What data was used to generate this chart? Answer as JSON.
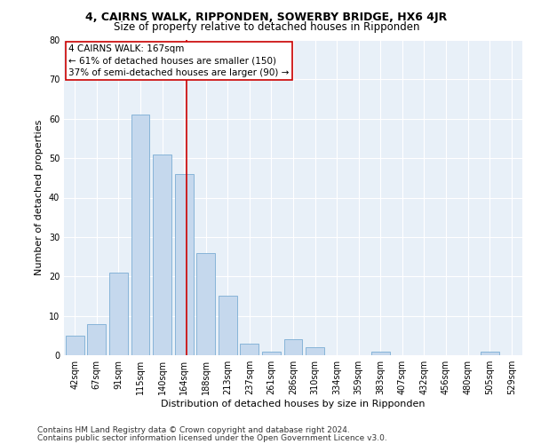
{
  "title": "4, CAIRNS WALK, RIPPONDEN, SOWERBY BRIDGE, HX6 4JR",
  "subtitle": "Size of property relative to detached houses in Ripponden",
  "xlabel": "Distribution of detached houses by size in Ripponden",
  "ylabel": "Number of detached properties",
  "bar_color": "#c5d8ed",
  "bar_edge_color": "#7aadd4",
  "background_color": "#e8f0f8",
  "categories": [
    "42sqm",
    "67sqm",
    "91sqm",
    "115sqm",
    "140sqm",
    "164sqm",
    "188sqm",
    "213sqm",
    "237sqm",
    "261sqm",
    "286sqm",
    "310sqm",
    "334sqm",
    "359sqm",
    "383sqm",
    "407sqm",
    "432sqm",
    "456sqm",
    "480sqm",
    "505sqm",
    "529sqm"
  ],
  "values": [
    5,
    8,
    21,
    61,
    51,
    46,
    26,
    15,
    3,
    1,
    4,
    2,
    0,
    0,
    1,
    0,
    0,
    0,
    0,
    1,
    0
  ],
  "vline_color": "#cc0000",
  "annotation_line1": "4 CAIRNS WALK: 167sqm",
  "annotation_line2": "← 61% of detached houses are smaller (150)",
  "annotation_line3": "37% of semi-detached houses are larger (90) →",
  "annotation_box_color": "#cc0000",
  "ylim": [
    0,
    80
  ],
  "yticks": [
    0,
    10,
    20,
    30,
    40,
    50,
    60,
    70,
    80
  ],
  "footer_line1": "Contains HM Land Registry data © Crown copyright and database right 2024.",
  "footer_line2": "Contains public sector information licensed under the Open Government Licence v3.0.",
  "title_fontsize": 9,
  "subtitle_fontsize": 8.5,
  "axis_label_fontsize": 8,
  "tick_fontsize": 7,
  "annotation_fontsize": 7.5,
  "footer_fontsize": 6.5
}
